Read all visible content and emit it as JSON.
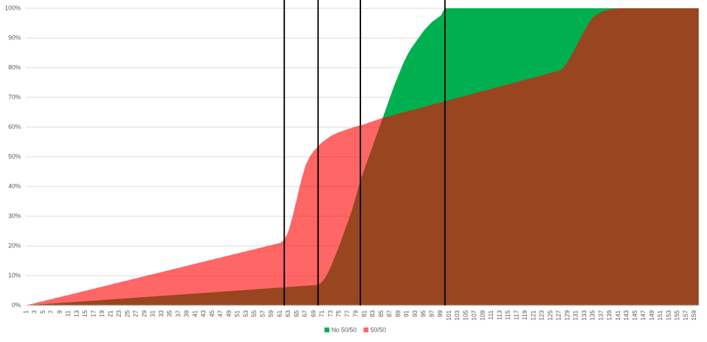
{
  "chart_data": {
    "type": "area",
    "categories": [
      1,
      null,
      3,
      null,
      5,
      null,
      7,
      null,
      9,
      null,
      11,
      null,
      13,
      null,
      15,
      null,
      17,
      null,
      19,
      null,
      21,
      null,
      23,
      null,
      25,
      null,
      27,
      null,
      29,
      null,
      31,
      null,
      33,
      null,
      35,
      null,
      37,
      null,
      39,
      null,
      41,
      null,
      43,
      null,
      45,
      null,
      47,
      null,
      49,
      null,
      51,
      null,
      53,
      null,
      55,
      null,
      57,
      null,
      59,
      null,
      61,
      null,
      63,
      null,
      65,
      null,
      67,
      null,
      69,
      null,
      71,
      null,
      73,
      null,
      75,
      null,
      77,
      null,
      79,
      null,
      81,
      null,
      83,
      null,
      85,
      null,
      87,
      null,
      89,
      null,
      91,
      null,
      93,
      null,
      95,
      null,
      97,
      null,
      99,
      null,
      101,
      null,
      103,
      null,
      105,
      null,
      107,
      null,
      109,
      null,
      111,
      null,
      113,
      null,
      115,
      null,
      117,
      null,
      119,
      null,
      121,
      null,
      123,
      null,
      125,
      null,
      127,
      null,
      129,
      null,
      131,
      null,
      133,
      null,
      135,
      null,
      137,
      null,
      139,
      null,
      141,
      null,
      143,
      null,
      145,
      null,
      147,
      null,
      149,
      null,
      151,
      null,
      153,
      null,
      155,
      null,
      157,
      null,
      159,
      null
    ],
    "series": [
      {
        "name": "No 50/50",
        "color": "#00b050",
        "values": [
          0,
          0.1,
          0.2,
          0.3,
          0.4,
          0.5,
          0.6,
          0.7,
          0.8,
          0.9,
          1,
          1.1,
          1.2,
          1.3,
          1.4,
          1.5,
          1.6,
          1.7,
          1.8,
          1.9,
          2,
          2.1,
          2.2,
          2.3,
          2.4,
          2.5,
          2.6,
          2.7,
          2.8,
          2.9,
          3,
          3.1,
          3.2,
          3.3,
          3.4,
          3.5,
          3.6,
          3.7,
          3.8,
          3.9,
          4,
          4.1,
          4.2,
          4.3,
          4.4,
          4.5,
          4.6,
          4.7,
          4.8,
          4.9,
          5,
          5.1,
          5.2,
          5.3,
          5.4,
          5.5,
          5.6,
          5.7,
          5.8,
          5.9,
          6,
          6.1,
          6.2,
          6.3,
          6.4,
          6.5,
          6.6,
          6.7,
          6.8,
          6.9,
          8,
          10,
          13,
          16.5,
          20,
          24,
          28,
          32,
          37,
          42,
          46,
          50,
          54,
          58,
          62,
          66,
          70,
          74,
          77.5,
          81,
          84,
          86.5,
          88.5,
          90.5,
          92.5,
          94,
          95.5,
          96.5,
          97.5,
          100,
          100,
          100,
          100,
          100,
          100,
          100,
          100,
          100,
          100,
          100,
          100,
          100,
          100,
          100,
          100,
          100,
          100,
          100,
          100,
          100,
          100,
          100,
          100,
          100,
          100,
          100,
          100,
          100,
          100,
          100,
          100,
          100,
          100,
          100,
          100,
          100,
          100,
          100,
          100,
          100,
          100,
          100,
          100,
          100,
          100,
          100,
          100,
          100,
          100,
          100,
          100,
          100,
          100,
          100,
          100,
          100,
          100,
          100,
          100,
          100
        ]
      },
      {
        "name": "50/50",
        "color": "#ff0000",
        "values": [
          0,
          0.4,
          0.7,
          1.1,
          1.4,
          1.8,
          2.1,
          2.5,
          2.8,
          3.2,
          3.5,
          3.9,
          4.2,
          4.6,
          4.9,
          5.3,
          5.6,
          6,
          6.3,
          6.7,
          7,
          7.4,
          7.7,
          8.1,
          8.4,
          8.8,
          9.1,
          9.5,
          9.8,
          10.2,
          10.5,
          10.9,
          11.2,
          11.6,
          11.9,
          12.3,
          12.6,
          13,
          13.3,
          13.7,
          14,
          14.4,
          14.7,
          15.1,
          15.4,
          15.8,
          16.1,
          16.5,
          16.8,
          17.2,
          17.5,
          17.9,
          18.2,
          18.6,
          18.9,
          19.3,
          19.6,
          20,
          20.3,
          20.7,
          21,
          22,
          25,
          30,
          36,
          42,
          47,
          50,
          52,
          53.5,
          55,
          56,
          57,
          57.7,
          58.3,
          58.8,
          59.3,
          59.8,
          60.2,
          60.6,
          61,
          61.5,
          62,
          62.5,
          63,
          63.4,
          63.8,
          64.1,
          64.5,
          64.9,
          65.3,
          65.7,
          66,
          66.4,
          66.8,
          67.2,
          67.6,
          68,
          68.3,
          68.7,
          69.1,
          69.5,
          69.9,
          70.2,
          70.6,
          71,
          71.4,
          71.8,
          72.2,
          72.5,
          72.9,
          73.3,
          73.7,
          74.1,
          74.4,
          74.8,
          75.2,
          75.6,
          76,
          76.3,
          76.7,
          77.1,
          77.5,
          77.9,
          78.3,
          78.6,
          79,
          80,
          82,
          84.5,
          87,
          90,
          92.5,
          95,
          97,
          98,
          98.8,
          99.3,
          99.6,
          99.8,
          99.9,
          100,
          100,
          100,
          100,
          100,
          100,
          100,
          100,
          100,
          100,
          100,
          100,
          100,
          100,
          100,
          100,
          100,
          100,
          100
        ]
      }
    ],
    "overlay_opacity": 0.6,
    "vlines": [
      62,
      70,
      80,
      100
    ],
    "ylim": [
      0,
      100
    ],
    "yticks": [
      {
        "value": 0,
        "label": "0%"
      },
      {
        "value": 10,
        "label": "10%"
      },
      {
        "value": 20,
        "label": "20%"
      },
      {
        "value": 30,
        "label": "30%"
      },
      {
        "value": 40,
        "label": "40%"
      },
      {
        "value": 50,
        "label": "50%"
      },
      {
        "value": 60,
        "label": "60%"
      },
      {
        "value": 70,
        "label": "70%"
      },
      {
        "value": 80,
        "label": "80%"
      },
      {
        "value": 90,
        "label": "90%"
      },
      {
        "value": 100,
        "label": "100%"
      }
    ],
    "grid": true
  }
}
